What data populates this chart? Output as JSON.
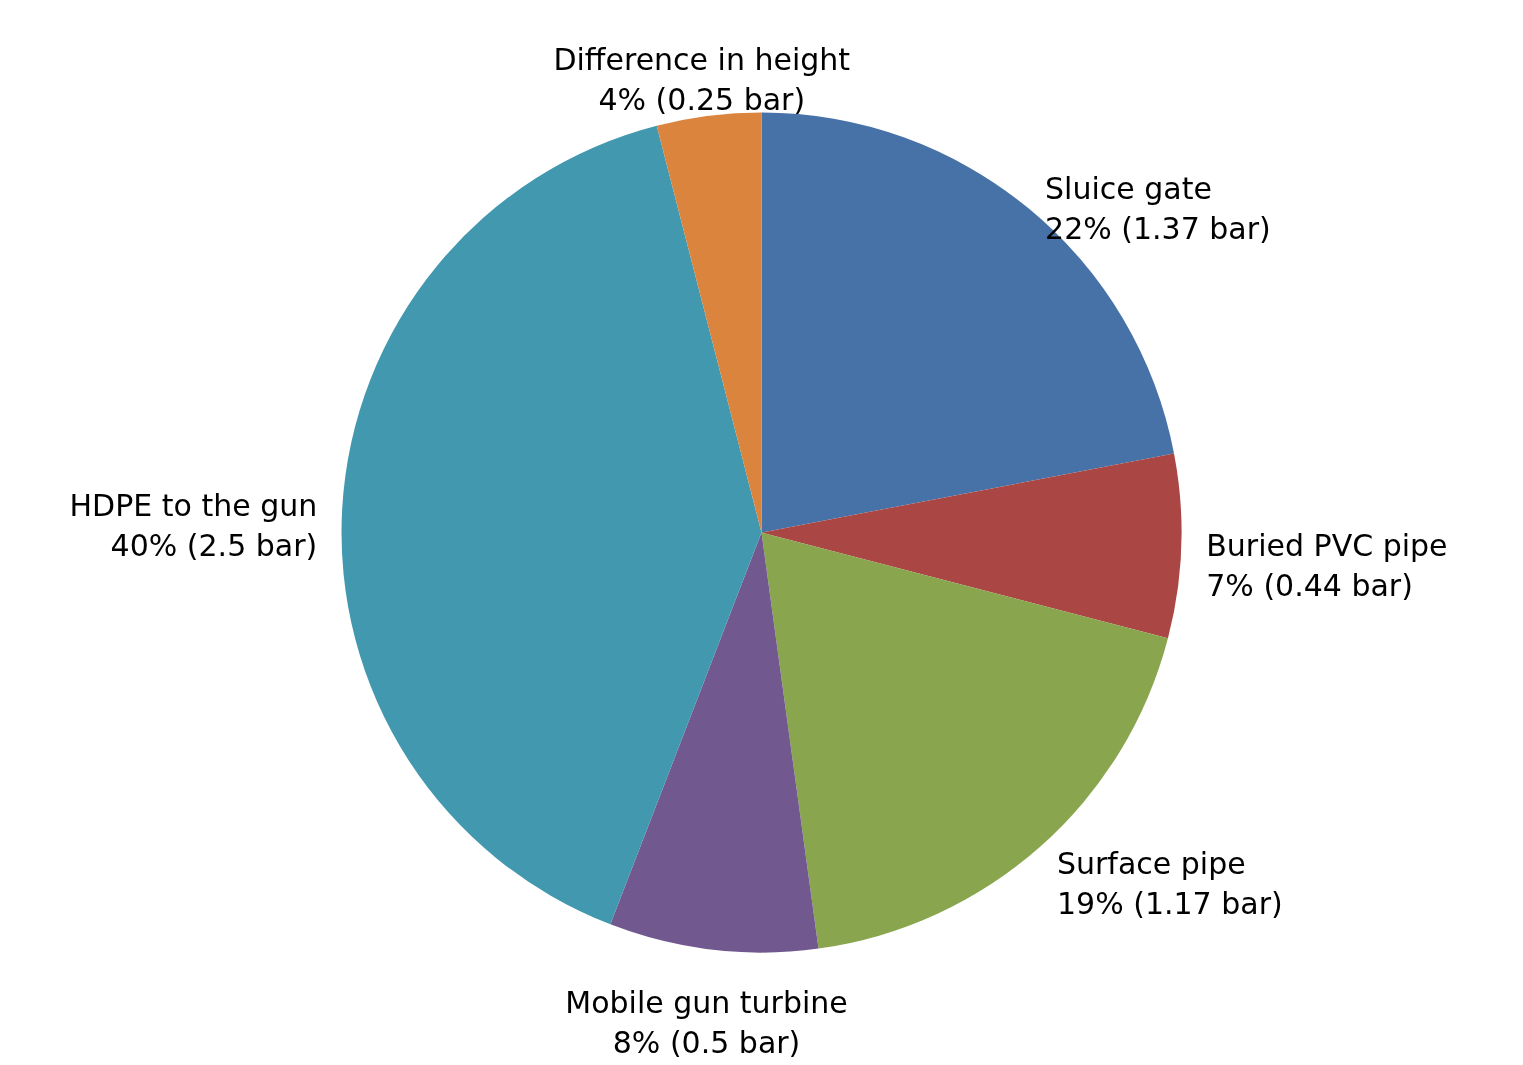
{
  "chart_data": {
    "type": "pie",
    "categories": [
      "Sluice gate",
      "Buried PVC pipe",
      "Surface pipe",
      "Mobile gun turbine",
      "HDPE to the gun",
      "Difference in height"
    ],
    "values": [
      1.37,
      0.44,
      1.17,
      0.5,
      2.5,
      0.25
    ],
    "value_labels": [
      "22% (1.37 bar)",
      "7% (0.44 bar)",
      "19% (1.17 bar)",
      "8% (0.5 bar)",
      "40% (2.5 bar)",
      "4% (0.25 bar)"
    ],
    "colors": [
      "#4672a8",
      "#aa4744",
      "#89a54e",
      "#71598f",
      "#4298af",
      "#db843d"
    ]
  }
}
